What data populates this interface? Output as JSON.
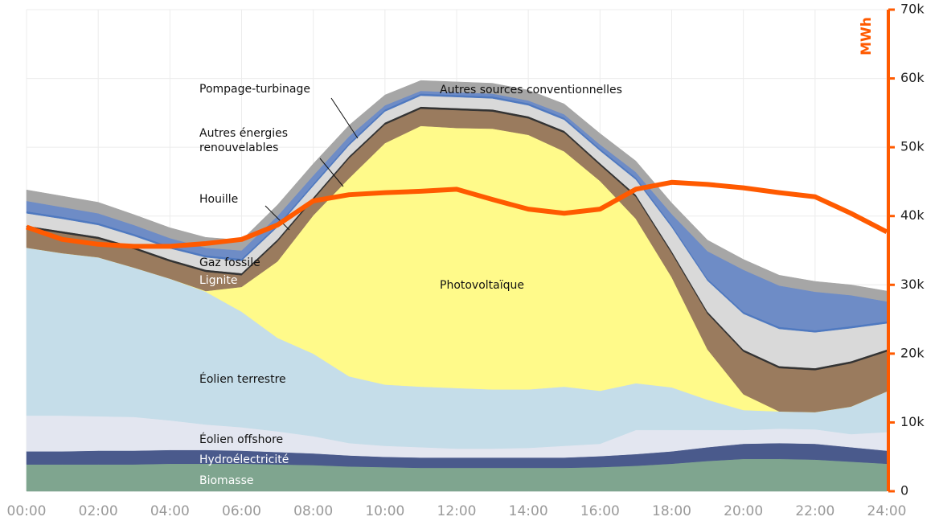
{
  "chart_data": {
    "type": "area",
    "y_label": "MWh",
    "categories": [
      "00:00",
      null,
      "02:00",
      null,
      "04:00",
      null,
      "06:00",
      null,
      "08:00",
      null,
      "10:00",
      null,
      "12:00",
      null,
      "14:00",
      null,
      "16:00",
      null,
      "18:00",
      null,
      "20:00",
      null,
      "22:00",
      null,
      "24:00"
    ],
    "ylim": [
      0,
      70000
    ],
    "yticks": [
      0,
      {
        "value": 10000,
        "label": "10k"
      },
      {
        "value": 20000,
        "label": "20k"
      },
      {
        "value": 30000,
        "label": "30k"
      },
      {
        "value": 40000,
        "label": "40k"
      },
      {
        "value": 50000,
        "label": "50k"
      },
      {
        "value": 60000,
        "label": "60k"
      },
      {
        "value": 70000,
        "label": "70k"
      }
    ],
    "grid": true,
    "axis_color": "#ff5a00",
    "series": [
      {
        "name": "Biomasse",
        "color": "#7fa58f",
        "values": [
          3900,
          3900,
          3900,
          3900,
          4000,
          4000,
          4000,
          3900,
          3800,
          3600,
          3500,
          3400,
          3400,
          3400,
          3400,
          3400,
          3500,
          3700,
          4000,
          4400,
          4700,
          4700,
          4600,
          4300,
          4000
        ]
      },
      {
        "name": "Hydroélectricité",
        "color": "#4a5a8c",
        "values": [
          1900,
          1900,
          2000,
          2000,
          2000,
          2000,
          1900,
          1800,
          1700,
          1600,
          1500,
          1500,
          1500,
          1500,
          1500,
          1500,
          1600,
          1700,
          1800,
          2000,
          2200,
          2300,
          2300,
          2100,
          1900
        ]
      },
      {
        "name": "Éolien offshore",
        "color": "#e3e6f0",
        "values": [
          5200,
          5200,
          5000,
          4900,
          4300,
          3700,
          3400,
          3000,
          2500,
          1800,
          1600,
          1500,
          1300,
          1300,
          1400,
          1700,
          1800,
          3500,
          3100,
          2500,
          2000,
          2100,
          2100,
          1900,
          2700
        ]
      },
      {
        "name": "Éolien terrestre",
        "color": "#c5dde9",
        "values": [
          24400,
          23600,
          23100,
          21700,
          20600,
          19300,
          16800,
          13600,
          12000,
          9700,
          8900,
          8800,
          8800,
          8600,
          8500,
          8600,
          7700,
          6800,
          6200,
          4400,
          2900,
          2500,
          2500,
          4000,
          5900
        ]
      },
      {
        "name": "Photovoltaïque",
        "color": "#fffa8a",
        "values": [
          0,
          0,
          0,
          0,
          0,
          100,
          3600,
          11100,
          20100,
          28800,
          35100,
          37900,
          37800,
          37900,
          37000,
          34200,
          30500,
          23900,
          16000,
          7300,
          2300,
          0,
          0,
          0,
          0
        ]
      },
      {
        "name": "Lignite",
        "color": "#9a7b5e",
        "values": [
          2900,
          2900,
          2700,
          2700,
          2500,
          2800,
          1700,
          2900,
          2300,
          2900,
          2700,
          2500,
          2600,
          2500,
          2400,
          2700,
          2300,
          3200,
          3500,
          5200,
          6200,
          6300,
          6100,
          6300,
          5800
        ]
      },
      {
        "name": "Houille",
        "color": "#333333",
        "values": [
          300,
          300,
          300,
          300,
          300,
          300,
          300,
          300,
          300,
          300,
          300,
          300,
          300,
          300,
          300,
          300,
          300,
          300,
          300,
          300,
          300,
          300,
          300,
          300,
          300
        ]
      },
      {
        "name": "Gaz fossile",
        "color": "#d9d9d9",
        "values": [
          1800,
          1800,
          1700,
          1600,
          1600,
          1800,
          1800,
          1800,
          1700,
          1600,
          1600,
          1600,
          1600,
          1600,
          1600,
          1600,
          1800,
          2200,
          3500,
          4500,
          5200,
          5400,
          5200,
          4800,
          3800
        ]
      },
      {
        "name": "Autres énergies renouvelables",
        "color": "#4f79c0",
        "values": [
          300,
          300,
          300,
          300,
          300,
          300,
          300,
          300,
          300,
          300,
          300,
          300,
          300,
          300,
          300,
          300,
          300,
          300,
          300,
          300,
          300,
          300,
          300,
          300,
          300
        ]
      },
      {
        "name": "Pompage-turbinage",
        "color": "#6e8cc6",
        "values": [
          1500,
          1400,
          1400,
          1300,
          1200,
          1100,
          1200,
          1300,
          1200,
          1000,
          600,
          400,
          400,
          400,
          400,
          500,
          600,
          800,
          1600,
          4000,
          6100,
          6000,
          5600,
          4500,
          2900
        ]
      },
      {
        "name": "Autres sources conventionnelles",
        "color": "#a6a6a6",
        "values": [
          1600,
          1600,
          1600,
          1500,
          1500,
          1500,
          1500,
          1600,
          1700,
          1600,
          1500,
          1500,
          1500,
          1500,
          1500,
          1500,
          1600,
          1600,
          1600,
          1600,
          1500,
          1500,
          1500,
          1500,
          1500
        ]
      },
      {
        "type": "line",
        "color": "#ff5a00",
        "values": [
          38400,
          36600,
          35900,
          35600,
          35600,
          36000,
          36600,
          38700,
          42200,
          43100,
          43400,
          43600,
          43900,
          42400,
          41000,
          40400,
          41000,
          43900,
          44900,
          44600,
          44100,
          43400,
          42800,
          40400,
          37700
        ]
      }
    ]
  }
}
